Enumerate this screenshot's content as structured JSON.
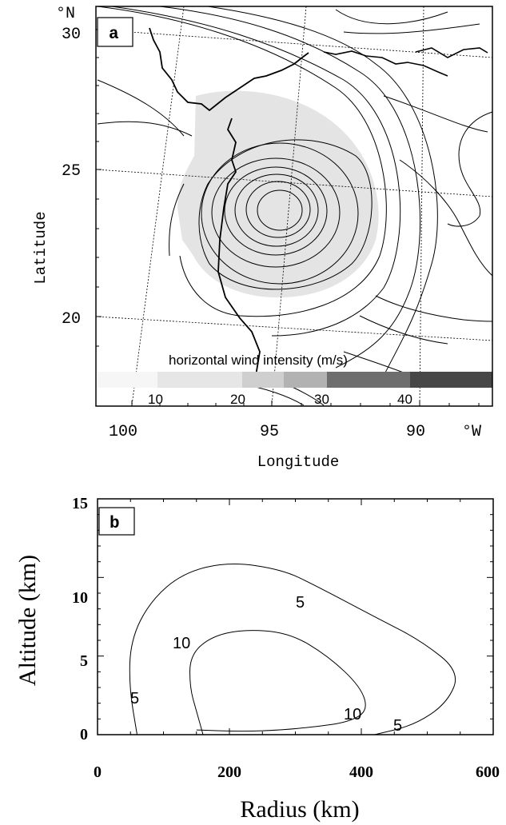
{
  "panel_a": {
    "label": "a",
    "lat_unit": "°N",
    "lon_unit": "°W",
    "ylabel": "Latitude",
    "xlabel": "Longitude",
    "lat_ticks": [
      "30",
      "25",
      "20"
    ],
    "lon_ticks": [
      "100",
      "95",
      "90"
    ],
    "colorbar": {
      "title": "horizontal wind intensity (m/s)",
      "ticks": [
        "10",
        "20",
        "30",
        "40"
      ],
      "shades": [
        "#f6f6f6",
        "#e6e6e6",
        "#cfcfcf",
        "#b2b2b2",
        "#6e6e6e",
        "#474747"
      ]
    }
  },
  "panel_b": {
    "label": "b",
    "ylabel": "Altitude (km)",
    "xlabel": "Radius (km)",
    "y_ticks": [
      "15",
      "10",
      "5",
      "0"
    ],
    "x_ticks": [
      "0",
      "200",
      "400",
      "600"
    ],
    "contour_labels": [
      "5",
      "10",
      "5",
      "10",
      "5"
    ]
  },
  "chart_data": [
    {
      "type": "map",
      "title": "",
      "xlabel": "Longitude",
      "ylabel": "Latitude",
      "xlim": [
        101.5,
        87
      ],
      "ylim": [
        17,
        31
      ],
      "legend": "horizontal wind intensity (m/s)",
      "legend_ticks": [
        10,
        20,
        30,
        40
      ]
    },
    {
      "type": "contour",
      "title": "",
      "xlabel": "Radius (km)",
      "ylabel": "Altitude (km)",
      "xlim": [
        0,
        600
      ],
      "ylim": [
        0,
        15
      ],
      "series": [
        {
          "name": "5",
          "x": [
            60,
            48,
            50,
            80,
            130,
            200,
            280,
            330,
            420,
            490,
            550,
            530,
            480,
            420
          ],
          "y": [
            0,
            3,
            6,
            8.5,
            10.3,
            11,
            10.5,
            9.5,
            7.5,
            6,
            4,
            2,
            0.6,
            0
          ]
        },
        {
          "name": "10",
          "x": [
            160,
            150,
            140,
            140,
            170,
            220,
            290,
            350,
            400,
            410,
            380,
            330,
            280,
            220,
            150
          ],
          "y": [
            0,
            1.5,
            3,
            5,
            6.2,
            6.7,
            6.5,
            5,
            3,
            1.5,
            0.8,
            0.5,
            0.3,
            0.2,
            0.3
          ]
        }
      ]
    }
  ]
}
